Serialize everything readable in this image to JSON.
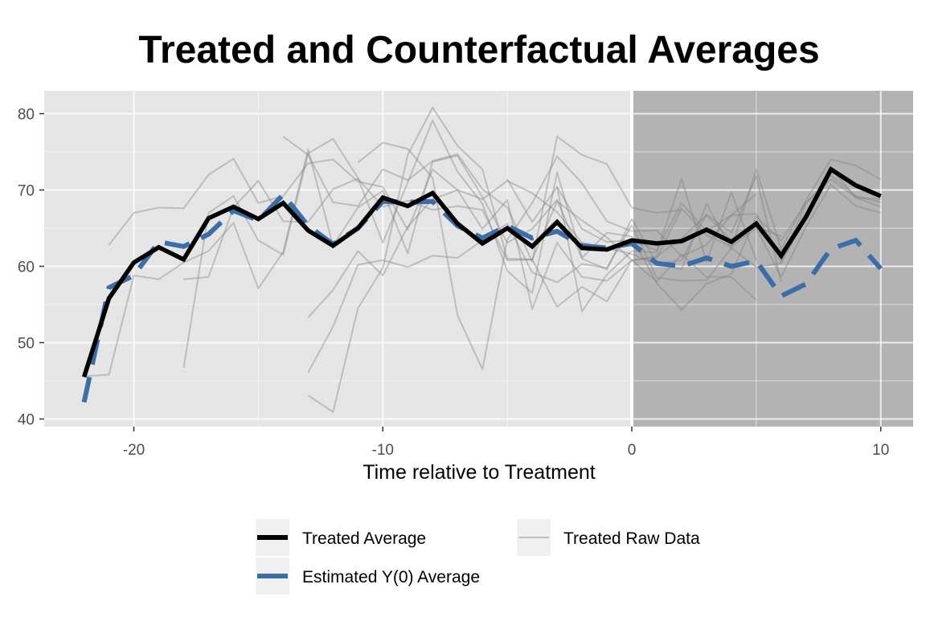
{
  "chart_data": {
    "type": "line",
    "title": "Treated and Counterfactual Averages",
    "xlabel": "Time relative to Treatment",
    "ylabel": "",
    "xlim": [
      -23.6,
      11.3
    ],
    "ylim": [
      39,
      83
    ],
    "x_ticks": [
      -20,
      -10,
      0,
      10
    ],
    "y_ticks": [
      40,
      50,
      60,
      70,
      80
    ],
    "grid": true,
    "treatment_start": 0,
    "post_treatment_shaded": true,
    "legend_position": "bottom",
    "series": [
      {
        "name": "Treated Average",
        "role": "treated_average",
        "color": "#000000",
        "x": [
          -22,
          -21,
          -20,
          -19,
          -18,
          -17,
          -16,
          -15,
          -14,
          -13,
          -12,
          -11,
          -10,
          -9,
          -8,
          -7,
          -6,
          -5,
          -4,
          -3,
          -2,
          -1,
          0,
          1,
          2,
          3,
          4,
          5,
          6,
          7,
          8,
          9,
          10
        ],
        "values": [
          45.5,
          55.8,
          60.5,
          62.5,
          60.9,
          66.3,
          67.8,
          66.2,
          68.3,
          64.7,
          62.7,
          65.0,
          69.0,
          67.9,
          69.6,
          65.6,
          63.0,
          65.0,
          62.6,
          65.8,
          62.4,
          62.2,
          63.4,
          63.0,
          63.3,
          64.8,
          63.2,
          65.6,
          61.4,
          66.5,
          72.7,
          70.6,
          69.2
        ]
      },
      {
        "name": "Estimated Y(0) Average",
        "role": "counterfactual_average",
        "color": "#3b6ea8",
        "x": [
          -22,
          -21,
          -20,
          -19,
          -18,
          -17,
          -16,
          -15,
          -14,
          -13,
          -12,
          -11,
          -10,
          -9,
          -8,
          -7,
          -6,
          -5,
          -4,
          -3,
          -2,
          -1,
          0,
          1,
          2,
          3,
          4,
          5,
          6,
          7,
          8,
          9,
          10
        ],
        "values": [
          42.2,
          57.2,
          58.8,
          63.2,
          62.6,
          64.2,
          67.3,
          66.0,
          69.4,
          65.3,
          62.9,
          65.0,
          68.5,
          68.4,
          68.5,
          65.3,
          63.7,
          65.3,
          63.7,
          64.6,
          62.7,
          62.4,
          63.0,
          60.4,
          60.0,
          61.1,
          60.0,
          60.7,
          56.1,
          57.7,
          62.3,
          63.4,
          59.7
        ]
      },
      {
        "name": "Treated Raw Data",
        "role": "raw_data",
        "color": "#808080",
        "lines": [
          {
            "x": [
              -21,
              -20,
              -19,
              -18,
              -17,
              -16,
              -15,
              -14,
              -13,
              -12,
              -11,
              -10,
              -9,
              -8,
              -7,
              -6,
              -5,
              -4,
              -3,
              -2,
              -1,
              0,
              1,
              2,
              3,
              4,
              5,
              6
            ],
            "values": [
              62.8,
              67.0,
              67.7,
              67.6,
              72.0,
              74.1,
              68.3,
              69.2,
              73.5,
              74.0,
              71.1,
              70.4,
              64.8,
              72.7,
              70.0,
              68.8,
              71.2,
              69.6,
              67.1,
              63.1,
              62.4,
              61.6,
              60.3,
              60.8,
              66.8,
              64.4,
              71.8,
              57.9
            ]
          },
          {
            "x": [
              -22,
              -21,
              -20,
              -19,
              -18,
              -17,
              -16,
              -15,
              -14,
              -13,
              -12,
              -11,
              -10,
              -9,
              -8,
              -7,
              -6,
              -5,
              -4,
              -3,
              -2,
              -1,
              0,
              1,
              2,
              3,
              4,
              5,
              6,
              7,
              8,
              9,
              10
            ],
            "values": [
              45.6,
              45.8,
              58.8,
              58.3,
              60.5,
              62.0,
              65.7,
              57.1,
              61.9,
              75.3,
              62.7,
              67.7,
              69.9,
              61.7,
              73.7,
              74.5,
              69.1,
              63.1,
              64.9,
              68.7,
              61.0,
              59.6,
              66.2,
              60.4,
              59.6,
              68.2,
              62.3,
              72.7,
              62.2,
              68.7,
              74.0,
              73.2,
              71.4
            ]
          },
          {
            "x": [
              -18,
              -17,
              -16,
              -15,
              -14,
              -13,
              -12,
              -11,
              -10,
              -9,
              -8,
              -7,
              -6,
              -5,
              -4,
              -3,
              -2,
              -1,
              0,
              1,
              2,
              3,
              4,
              5,
              6,
              7,
              8,
              9,
              10
            ],
            "values": [
              58.3,
              58.6,
              67.7,
              71.2,
              65.9,
              65.8,
              70.1,
              71.5,
              67.8,
              68.6,
              67.4,
              67.9,
              67.4,
              60.8,
              60.9,
              68.5,
              66.0,
              63.8,
              60.8,
              61.1,
              67.6,
              64.1,
              62.6,
              65.0,
              58.6,
              65.2,
              70.7,
              67.9,
              67.0
            ]
          },
          {
            "x": [
              -18,
              -17,
              -16,
              -15,
              -14,
              -13,
              -12,
              -11,
              -10,
              -9,
              -8,
              -7,
              -6,
              -5,
              -4,
              -3,
              -2,
              -1,
              0,
              1,
              2,
              3,
              4,
              5,
              6,
              7,
              8,
              9,
              10
            ],
            "values": [
              46.7,
              67.0,
              69.2,
              63.4,
              61.5,
              74.8,
              76.7,
              71.6,
              63.1,
              71.0,
              79.1,
              72.4,
              68.2,
              59.4,
              56.5,
              72.3,
              61.1,
              64.4,
              63.9,
              57.8,
              54.3,
              57.7,
              59.0,
              66.5,
              63.4,
              68.3,
              71.4,
              69.0,
              68.8
            ]
          },
          {
            "x": [
              -13,
              -12,
              -11,
              -10,
              -9,
              -8,
              -7,
              -6,
              -5,
              -4,
              -3,
              -2,
              -1,
              0,
              1,
              2,
              3,
              4,
              5
            ],
            "values": [
              53.3,
              56.9,
              62.0,
              58.8,
              65.2,
              68.8,
              70.0,
              64.9,
              68.7,
              54.4,
              63.1,
              58.6,
              58.1,
              60.8,
              58.0,
              61.6,
              58.6,
              58.6,
              55.6
            ]
          },
          {
            "x": [
              -13,
              -12,
              -11,
              -10,
              -9,
              -8,
              -7,
              -6,
              -5,
              -4,
              -3,
              -2,
              -1,
              0,
              1,
              2,
              3,
              4,
              5,
              6,
              7,
              8,
              9,
              10
            ],
            "values": [
              46.1,
              52.1,
              60.2,
              60.8,
              59.9,
              61.4,
              61.1,
              63.4,
              65.6,
              59.2,
              57.9,
              60.3,
              59.8,
              65.4,
              58.5,
              58.1,
              58.2,
              62.4,
              59.9,
              60.4,
              68.3,
              71.9,
              69.2,
              68.4
            ]
          },
          {
            "x": [
              -13,
              -12,
              -11,
              -10,
              -9,
              -8,
              -7,
              -6,
              -5,
              -4,
              -3,
              -2,
              -1,
              0,
              1,
              2,
              3,
              4,
              5,
              6
            ],
            "values": [
              43.1,
              40.9,
              54.5,
              59.8,
              74.6,
              80.8,
              75.8,
              72.7,
              61.0,
              60.9,
              54.7,
              57.3,
              55.4,
              60.8,
              61.3,
              63.7,
              66.7,
              63.4,
              65.2,
              63.9
            ]
          },
          {
            "x": [
              -14,
              -13,
              -12,
              -11,
              -10,
              -9,
              -8,
              -7,
              -6,
              -5,
              -4,
              -3,
              -2,
              -1,
              0,
              1,
              2
            ],
            "values": [
              77.0,
              74.6,
              68.4,
              67.9,
              72.7,
              71.3,
              73.8,
              74.7,
              70.1,
              67.7,
              60.6,
              77.0,
              74.6,
              73.4,
              67.7,
              67.0,
              67.4
            ]
          },
          {
            "x": [
              -11,
              -10,
              -9,
              -8,
              -7,
              -6,
              -5,
              -4,
              -3,
              -2,
              -1,
              0,
              1,
              2,
              3,
              4,
              5
            ],
            "values": [
              73.6,
              76.2,
              75.4,
              71.6,
              53.6,
              46.5,
              63.5,
              68.3,
              74.4,
              70.9,
              65.9,
              64.6,
              64.7,
              61.3,
              62.8,
              66.7,
              69.5
            ]
          },
          {
            "x": [
              -5,
              -4,
              -3,
              -2,
              -1,
              0,
              1,
              2,
              3,
              4,
              5
            ],
            "values": [
              71.4,
              65.8,
              70.4,
              54.1,
              58.9,
              62.0,
              61.8,
              71.5,
              60.6,
              69.7,
              60.8
            ]
          },
          {
            "x": [
              -3,
              -2,
              -1,
              0,
              1,
              2,
              3,
              4,
              5,
              6,
              7,
              8,
              9,
              10
            ],
            "values": [
              70.4,
              64.9,
              63.2,
              63.4,
              62.1,
              68.3,
              64.6,
              66.7,
              66.9,
              60.6,
              66.3,
              72.8,
              69.0,
              67.8
            ]
          }
        ]
      }
    ],
    "legend": [
      {
        "label": "Treated Average",
        "series": 0
      },
      {
        "label": "Treated Raw Data",
        "series": 2
      },
      {
        "label": "Estimated Y(0) Average",
        "series": 1
      }
    ]
  },
  "colors": {
    "panel_pre": "#e5e5e5",
    "panel_post": "#b3b3b3",
    "grid": "#ffffff",
    "legend_key_bg": "#f0f0f0"
  }
}
